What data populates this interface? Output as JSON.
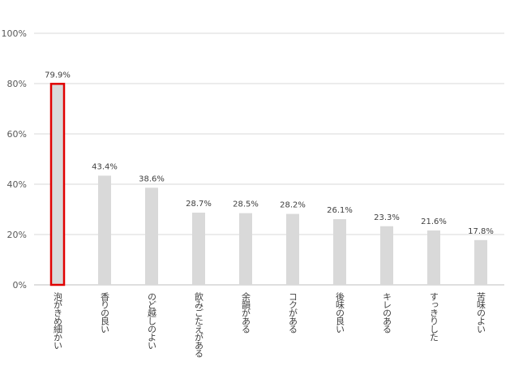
{
  "chart_data": {
    "type": "bar",
    "categories": [
      "泡がきめ細かい",
      "香りの良い",
      "のど越しのよい",
      "飲みごたえがある",
      "余韻がある",
      "コクがある",
      "後味の良い",
      "キレのある",
      "すっきりした",
      "苦味のよい"
    ],
    "values": [
      79.9,
      43.4,
      38.6,
      28.7,
      28.5,
      28.2,
      26.1,
      23.3,
      21.6,
      17.8
    ],
    "data_labels": [
      "79.9%",
      "43.4%",
      "38.6%",
      "28.7%",
      "28.5%",
      "28.2%",
      "26.1%",
      "23.3%",
      "21.6%",
      "17.8%"
    ],
    "y_ticks": [
      0,
      20,
      40,
      60,
      80,
      100
    ],
    "y_tick_labels": [
      "0%",
      "20%",
      "40%",
      "60%",
      "80%",
      "100%"
    ],
    "ylim": [
      0,
      100
    ],
    "title": "",
    "xlabel": "",
    "ylabel": "",
    "grid": true,
    "highlight_index": 0,
    "colors": {
      "bar": "#d9d9d9",
      "highlight_border": "#e00000",
      "grid": "#d9d9d9",
      "axis": "#bfbfbf"
    }
  }
}
